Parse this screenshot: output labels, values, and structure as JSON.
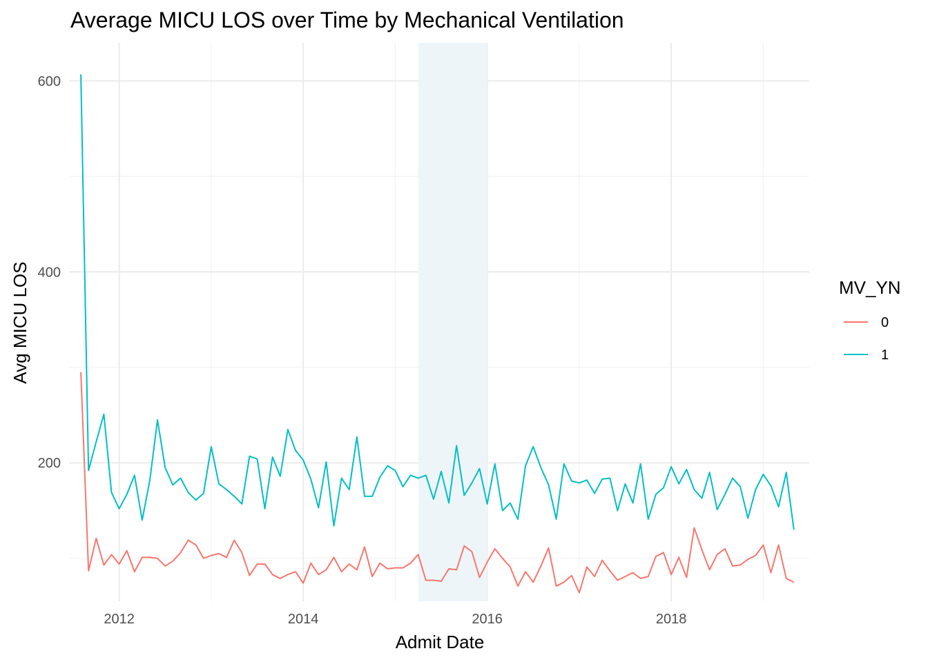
{
  "chart_data": {
    "type": "line",
    "title": "Average MICU LOS over Time by Mechanical Ventilation",
    "xlabel": "Admit Date",
    "ylabel": "Avg MICU LOS",
    "x_ticks": [
      "2012",
      "2014",
      "2016",
      "2018"
    ],
    "y_ticks": [
      "200",
      "400",
      "600"
    ],
    "xlim": [
      "2011-06-15",
      "2019-07-01"
    ],
    "ylim": [
      55,
      640
    ],
    "grid": true,
    "legend": {
      "title": "MV_YN",
      "position": "right"
    },
    "shaded_region": {
      "start": "2015-04-01",
      "end": "2016-01-01",
      "color": "#eef5f9"
    },
    "x": [
      "2011-08",
      "2011-09",
      "2011-10",
      "2011-11",
      "2011-12",
      "2012-01",
      "2012-02",
      "2012-03",
      "2012-04",
      "2012-05",
      "2012-06",
      "2012-07",
      "2012-08",
      "2012-09",
      "2012-10",
      "2012-11",
      "2012-12",
      "2013-01",
      "2013-02",
      "2013-03",
      "2013-04",
      "2013-05",
      "2013-06",
      "2013-07",
      "2013-08",
      "2013-09",
      "2013-10",
      "2013-11",
      "2013-12",
      "2014-01",
      "2014-02",
      "2014-03",
      "2014-04",
      "2014-05",
      "2014-06",
      "2014-07",
      "2014-08",
      "2014-09",
      "2014-10",
      "2014-11",
      "2014-12",
      "2015-01",
      "2015-02",
      "2015-03",
      "2015-04",
      "2015-05",
      "2015-06",
      "2015-07",
      "2015-08",
      "2015-09",
      "2015-10",
      "2015-11",
      "2015-12",
      "2016-01",
      "2016-02",
      "2016-03",
      "2016-04",
      "2016-05",
      "2016-06",
      "2016-07",
      "2016-08",
      "2016-09",
      "2016-10",
      "2016-11",
      "2016-12",
      "2017-01",
      "2017-02",
      "2017-03",
      "2017-04",
      "2017-05",
      "2017-06",
      "2017-07",
      "2017-08",
      "2017-09",
      "2017-10",
      "2017-11",
      "2017-12",
      "2018-01",
      "2018-02",
      "2018-03",
      "2018-04",
      "2018-05",
      "2018-06",
      "2018-07",
      "2018-08",
      "2018-09",
      "2018-10",
      "2018-11",
      "2018-12",
      "2019-01",
      "2019-02",
      "2019-03",
      "2019-04",
      "2019-05"
    ],
    "series": [
      {
        "name": "0",
        "color": "#F8766D",
        "values": [
          295,
          87,
          121,
          93,
          104,
          94,
          108,
          86,
          101,
          101,
          100,
          92,
          97,
          106,
          119,
          114,
          100,
          103,
          105,
          101,
          119,
          106,
          82,
          94,
          94,
          83,
          79,
          83,
          86,
          74,
          95,
          83,
          88,
          101,
          86,
          94,
          88,
          112,
          81,
          95,
          89,
          90,
          90,
          95,
          104,
          77,
          77,
          76,
          89,
          88,
          113,
          107,
          80,
          96,
          110,
          100,
          91,
          71,
          86,
          75,
          92,
          111,
          71,
          75,
          82,
          64,
          91,
          81,
          98,
          87,
          77,
          81,
          85,
          79,
          81,
          102,
          106,
          83,
          101,
          80,
          132,
          109,
          88,
          104,
          110,
          92,
          93,
          99,
          103,
          114,
          85,
          114,
          79,
          75
        ]
      },
      {
        "name": "1",
        "color": "#00BFC4",
        "values": [
          607,
          192,
          222,
          251,
          169,
          152,
          167,
          187,
          140,
          182,
          245,
          195,
          177,
          184,
          169,
          161,
          168,
          217,
          178,
          172,
          165,
          157,
          207,
          204,
          152,
          206,
          186,
          235,
          213,
          203,
          183,
          153,
          201,
          134,
          184,
          172,
          227,
          165,
          165,
          185,
          197,
          192,
          175,
          187,
          184,
          187,
          162,
          191,
          158,
          218,
          166,
          179,
          194,
          157,
          199,
          150,
          158,
          141,
          197,
          217,
          195,
          177,
          141,
          199,
          181,
          179,
          182,
          168,
          183,
          184,
          150,
          178,
          158,
          199,
          141,
          167,
          174,
          196,
          178,
          193,
          172,
          163,
          190,
          151,
          167,
          184,
          175,
          142,
          172,
          188,
          176,
          154,
          190,
          130
        ]
      }
    ]
  }
}
